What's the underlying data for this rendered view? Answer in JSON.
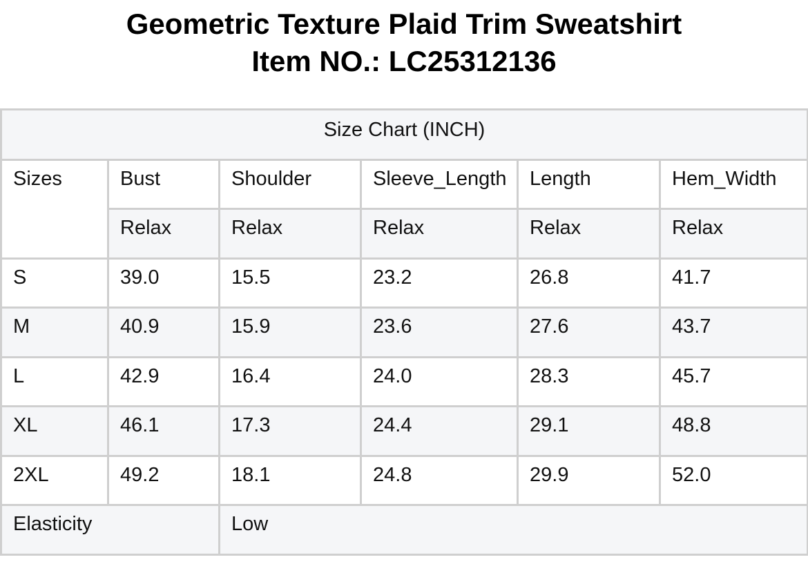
{
  "title": {
    "line1": "Geometric Texture Plaid Trim Sweatshirt",
    "line2": "Item NO.: LC25312136"
  },
  "table": {
    "caption": "Size Chart (INCH)",
    "sizes_header": "Sizes",
    "columns": [
      "Bust",
      "Shoulder",
      "Sleeve_Length",
      "Length",
      "Hem_Width"
    ],
    "fit_labels": [
      "Relax",
      "Relax",
      "Relax",
      "Relax",
      "Relax"
    ],
    "rows": [
      {
        "size": "S",
        "values": [
          "39.0",
          "15.5",
          "23.2",
          "26.8",
          "41.7"
        ]
      },
      {
        "size": "M",
        "values": [
          "40.9",
          "15.9",
          "23.6",
          "27.6",
          "43.7"
        ]
      },
      {
        "size": "L",
        "values": [
          "42.9",
          "16.4",
          "24.0",
          "28.3",
          "45.7"
        ]
      },
      {
        "size": "XL",
        "values": [
          "46.1",
          "17.3",
          "24.4",
          "29.1",
          "48.8"
        ]
      },
      {
        "size": "2XL",
        "values": [
          "49.2",
          "18.1",
          "24.8",
          "29.9",
          "52.0"
        ]
      }
    ],
    "elasticity_label": "Elasticity",
    "elasticity_value": "Low"
  }
}
